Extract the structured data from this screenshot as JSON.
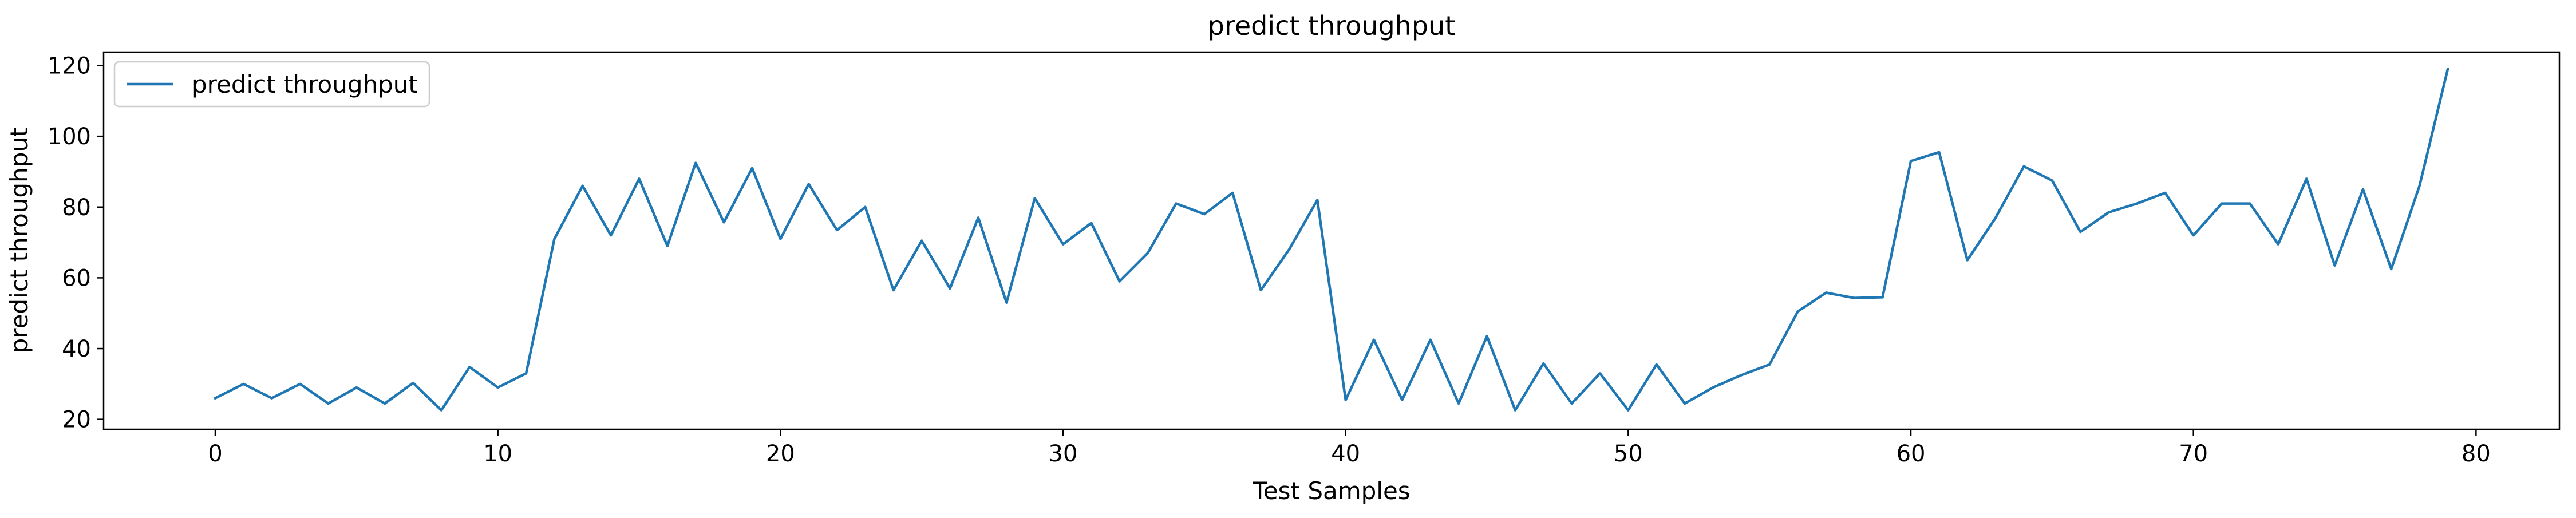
{
  "chart_data": {
    "type": "line",
    "title": "predict throughput",
    "xlabel": "Test Samples",
    "ylabel": "predict throughput",
    "xlim": [
      -3.95,
      82.95
    ],
    "ylim": [
      17.2,
      123.8
    ],
    "xticks": [
      0,
      10,
      20,
      30,
      40,
      50,
      60,
      70,
      80
    ],
    "yticks": [
      20,
      40,
      60,
      80,
      100,
      120
    ],
    "grid": false,
    "legend_position": "upper left",
    "series": [
      {
        "name": "predict throughput",
        "color": "#1f77b4",
        "x": [
          0,
          1,
          2,
          3,
          4,
          5,
          6,
          7,
          8,
          9,
          10,
          11,
          12,
          13,
          14,
          15,
          16,
          17,
          18,
          19,
          20,
          21,
          22,
          23,
          24,
          25,
          26,
          27,
          28,
          29,
          30,
          31,
          32,
          33,
          34,
          35,
          36,
          37,
          38,
          39,
          40,
          41,
          42,
          43,
          44,
          45,
          46,
          47,
          48,
          49,
          50,
          51,
          52,
          53,
          54,
          55,
          56,
          57,
          58,
          59,
          60,
          61,
          62,
          63,
          64,
          65,
          66,
          67,
          68,
          69,
          70,
          71,
          72,
          73,
          74,
          75,
          76,
          77,
          78,
          79
        ],
        "values": [
          26,
          30,
          26,
          30,
          24.5,
          29,
          24.5,
          30.3,
          22.6,
          34.8,
          29,
          33,
          71,
          86,
          72,
          88,
          69,
          92.5,
          75.7,
          91,
          71,
          86.5,
          73.5,
          80,
          56.5,
          70.5,
          57,
          77,
          53,
          82.5,
          69.5,
          75.5,
          59,
          67,
          81,
          78,
          84,
          56.5,
          68,
          82,
          25.5,
          42.5,
          25.5,
          42.5,
          24.5,
          43.5,
          22.6,
          35.8,
          24.5,
          33,
          22.6,
          35.5,
          24.5,
          29,
          32.5,
          35.5,
          50.5,
          55.8,
          54.3,
          54.5,
          93,
          95.5,
          65,
          77,
          91.5,
          87.5,
          73,
          78.5,
          81,
          84,
          72,
          81,
          81,
          69.5,
          88,
          63.5,
          85,
          62.5,
          86,
          119
        ]
      }
    ]
  }
}
